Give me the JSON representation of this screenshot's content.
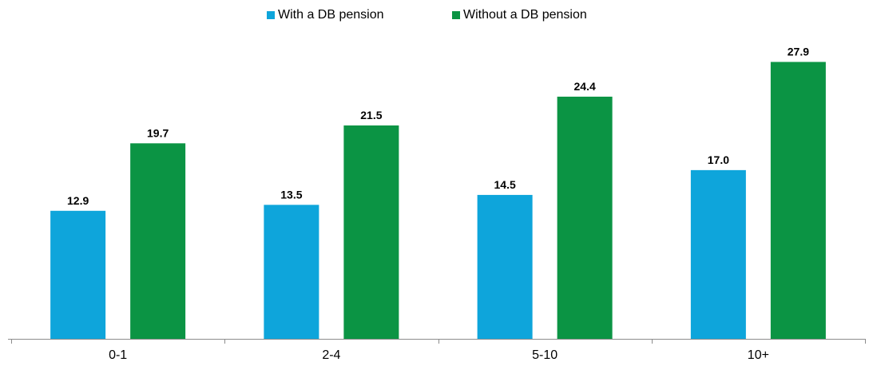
{
  "chart_data": {
    "type": "bar",
    "categories": [
      "0-1",
      "2-4",
      "5-10",
      "10+"
    ],
    "series": [
      {
        "name": "With a DB pension",
        "values": [
          12.9,
          13.5,
          14.5,
          17.0
        ],
        "color": "#0ea5db"
      },
      {
        "name": "Without a DB pension",
        "values": [
          19.7,
          21.5,
          24.4,
          27.9
        ],
        "color": "#0b9444"
      }
    ],
    "value_labels": [
      [
        "12.9",
        "13.5",
        "14.5",
        "17.0"
      ],
      [
        "19.7",
        "21.5",
        "24.4",
        "27.9"
      ]
    ],
    "ylim": [
      0,
      31
    ],
    "grid": false,
    "legend_position": "top-center"
  }
}
